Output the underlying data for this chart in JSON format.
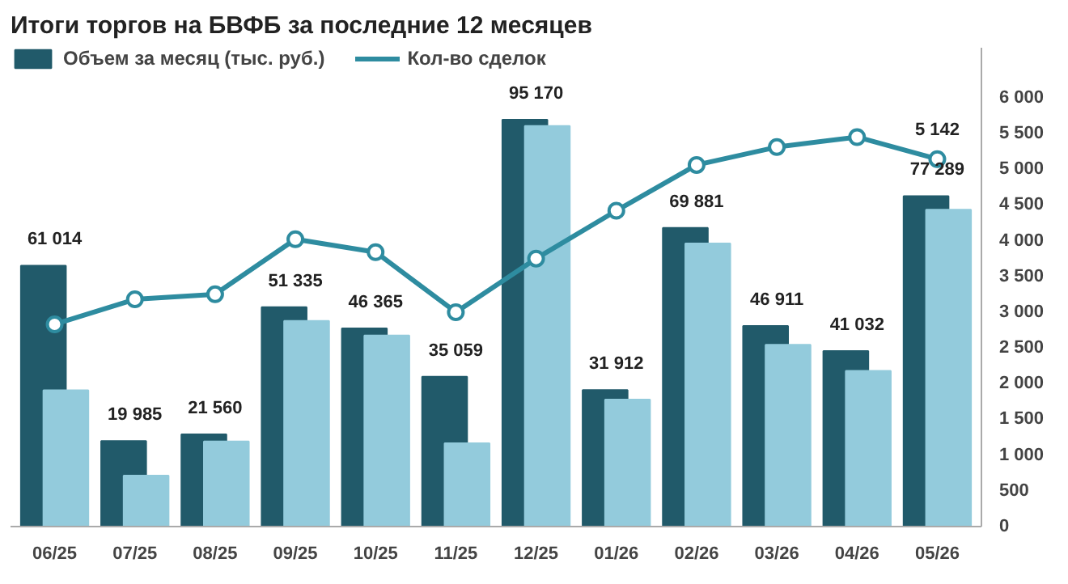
{
  "chart_data": {
    "type": "bar",
    "title": "Итоги торгов на БВФБ за последние 12 месяцев",
    "categories": [
      "06/25",
      "07/25",
      "08/25",
      "09/25",
      "10/25",
      "11/25",
      "12/25",
      "01/26",
      "02/26",
      "03/26",
      "04/26",
      "05/26"
    ],
    "series": [
      {
        "name": "Объем за месяц (тыс. руб.)",
        "color": "#215a6a",
        "values": [
          61014,
          19985,
          21560,
          51335,
          46365,
          35059,
          95170,
          31912,
          69881,
          46911,
          41032,
          77289
        ],
        "value_labels": [
          "61 014",
          "19 985",
          "21 560",
          "51 335",
          "46 365",
          "35 059",
          "95 170",
          "31 912",
          "69 881",
          "46 911",
          "41 032",
          "77 289"
        ]
      },
      {
        "color": "#93cbdc",
        "values": [
          31900,
          11900,
          19900,
          48100,
          44700,
          19500,
          93700,
          29700,
          66200,
          42500,
          36400,
          74100
        ]
      },
      {
        "name": "Кол-во сделок",
        "type": "line",
        "axis": "y2",
        "color": "#2e8ca0",
        "marker": "circle",
        "values": [
          2830,
          3180,
          3250,
          4020,
          3840,
          3000,
          3750,
          4420,
          5060,
          5310,
          5450,
          5142
        ],
        "value_labels": [
          null,
          null,
          null,
          null,
          null,
          null,
          null,
          null,
          null,
          null,
          null,
          "5 142"
        ]
      }
    ],
    "ylim": [
      0,
      112000
    ],
    "y2lim": [
      0,
      6700
    ],
    "y2ticks": [
      {
        "value": 0,
        "label": "0"
      },
      {
        "value": 500,
        "label": "500"
      },
      {
        "value": 1000,
        "label": "1 000"
      },
      {
        "value": 1500,
        "label": "1 500"
      },
      {
        "value": 2000,
        "label": "2 000"
      },
      {
        "value": 2500,
        "label": "2 500"
      },
      {
        "value": 3000,
        "label": "3 000"
      },
      {
        "value": 3500,
        "label": "3 500"
      },
      {
        "value": 4000,
        "label": "4 000"
      },
      {
        "value": 4500,
        "label": "4 500"
      },
      {
        "value": 5000,
        "label": "5 000"
      },
      {
        "value": 5500,
        "label": "5 500"
      },
      {
        "value": 6000,
        "label": "6 000"
      }
    ],
    "grid": false,
    "legend": "top"
  }
}
